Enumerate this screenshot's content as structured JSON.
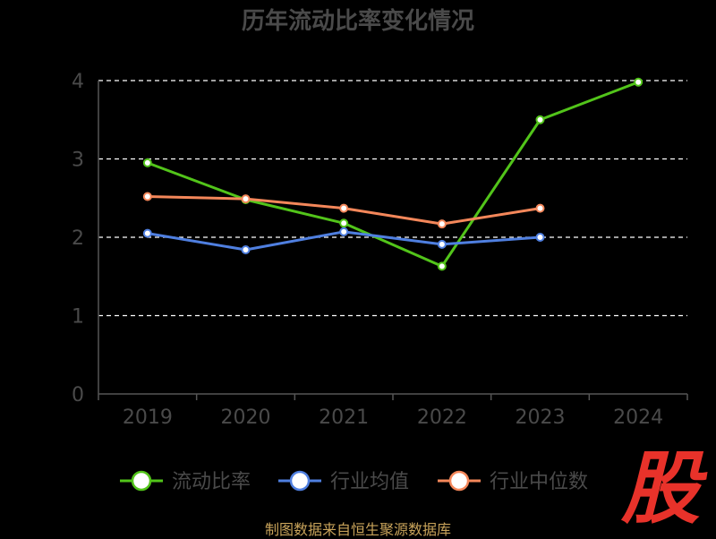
{
  "chart_data": {
    "type": "line",
    "title": "历年流动比率变化情况",
    "categories": [
      "2019",
      "2020",
      "2021",
      "2022",
      "2023",
      "2024"
    ],
    "ylim": [
      0,
      4
    ],
    "yticks": [
      0,
      1,
      2,
      3,
      4
    ],
    "grid": true,
    "legend_position": "bottom",
    "series": [
      {
        "name": "流动比率",
        "color": "#52c41a",
        "values": [
          2.95,
          2.48,
          2.18,
          1.63,
          3.5,
          3.98
        ]
      },
      {
        "name": "行业均值",
        "color": "#4f7fe0",
        "values": [
          2.05,
          1.84,
          2.07,
          1.91,
          2.0,
          null
        ]
      },
      {
        "name": "行业中位数",
        "color": "#f4875a",
        "values": [
          2.52,
          2.49,
          2.37,
          2.17,
          2.37,
          null
        ]
      }
    ]
  },
  "watermark": {
    "text": "股",
    "color": "#e8322a"
  },
  "footer": {
    "note": "制图数据来自恒生聚源数据库"
  }
}
